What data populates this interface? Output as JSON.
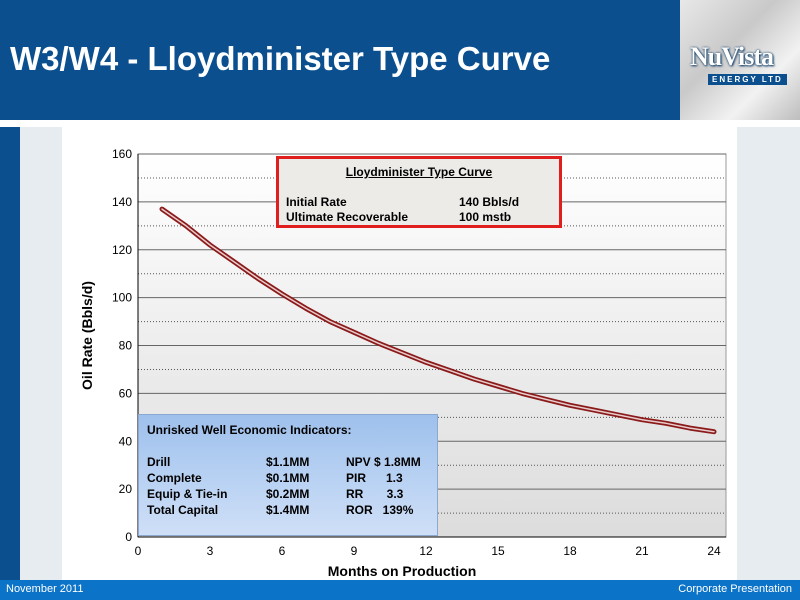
{
  "slide": {
    "title": "W3/W4 - Lloydminister Type Curve",
    "footer_left": "November  2011",
    "footer_right": "Corporate Presentation",
    "logo_text": "NuVista",
    "logo_subtext": "ENERGY LTD",
    "colors": {
      "header": "#0b4f8f",
      "footer": "#0b73c8",
      "curve": "#8b1a1a",
      "annotation_border": "#e01e1e"
    }
  },
  "annotation": {
    "title": "Lloydminister Type Curve",
    "rows": [
      {
        "label": "Initial Rate",
        "value": "140 Bbls/d"
      },
      {
        "label": "Ultimate Recoverable",
        "value": "100 mstb"
      }
    ]
  },
  "economics": {
    "title": "Unrisked Well Economic Indicators:",
    "rows": [
      {
        "item": "Drill",
        "cost": "$1.1MM",
        "metric": "NPV $ 1.8MM"
      },
      {
        "item": "Complete",
        "cost": "$0.1MM",
        "metric": "PIR      1.3"
      },
      {
        "item": "Equip & Tie-in",
        "cost": "$0.2MM",
        "metric": "RR       3.3"
      },
      {
        "item": "Total Capital",
        "cost": "$1.4MM",
        "metric": "ROR   139%"
      }
    ]
  },
  "chart_data": {
    "type": "line",
    "title": "",
    "xlabel": "Months on Production",
    "ylabel": "Oil Rate (Bbls/d)",
    "xlim": [
      0,
      24.5
    ],
    "ylim": [
      0,
      160
    ],
    "xticks": [
      0,
      3,
      6,
      9,
      12,
      15,
      18,
      21,
      24
    ],
    "yticks": [
      0,
      20,
      40,
      60,
      80,
      100,
      120,
      140,
      160
    ],
    "grid": "horizontal",
    "series": [
      {
        "x": [
          1,
          2,
          3,
          4,
          5,
          6,
          7,
          8,
          9,
          10,
          11,
          12,
          13,
          14,
          15,
          16,
          17,
          18,
          19,
          20,
          21,
          22,
          23,
          24
        ],
        "values": [
          137,
          130,
          122,
          115,
          108,
          101.5,
          95.5,
          90,
          85.5,
          81,
          77,
          73,
          69.5,
          66,
          63,
          60,
          57.5,
          55,
          53,
          51,
          49,
          47.5,
          45.5,
          44
        ]
      }
    ]
  }
}
